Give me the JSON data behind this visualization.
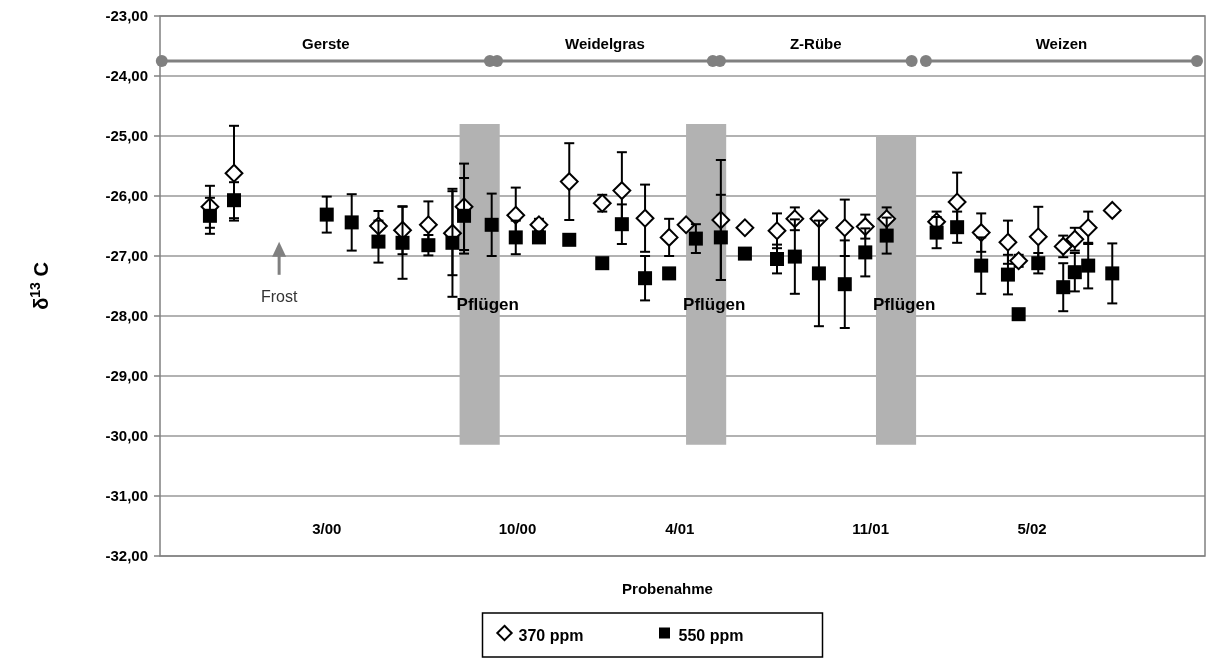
{
  "chart_data": {
    "type": "scatter",
    "xlabel": "Probenahme",
    "ylabel": "δ$^{13}$ C",
    "x": [
      "1999-10-22",
      "1999-11-18",
      "2000-03-01",
      "2000-03-29",
      "2000-04-28",
      "2000-05-25",
      "2000-06-23",
      "2000-07-20",
      "2000-08-02",
      "2000-09-02",
      "2000-09-29",
      "2000-10-25",
      "2000-11-28",
      "2001-01-04",
      "2001-01-26",
      "2001-02-21",
      "2001-03-20",
      "2001-04-08",
      "2001-04-19",
      "2001-05-17",
      "2001-06-13",
      "2001-07-19",
      "2001-08-08",
      "2001-09-04",
      "2001-10-03",
      "2001-10-26",
      "2001-11-19",
      "2002-01-14",
      "2002-02-06",
      "2002-03-05",
      "2002-04-04",
      "2002-04-16",
      "2002-05-08",
      "2002-06-05",
      "2002-06-18",
      "2002-07-03",
      "2002-07-30"
    ],
    "series": [
      {
        "name": "370 ppm",
        "color": "#000000",
        "marker": "diamond",
        "values": [
          -26.18,
          -25.62,
          null,
          null,
          -26.5,
          -26.57,
          -26.48,
          -26.62,
          -26.18,
          null,
          -26.32,
          -26.48,
          -25.76,
          -26.12,
          -25.91,
          -26.37,
          -26.69,
          -26.48,
          null,
          -26.4,
          -26.53,
          -26.58,
          -26.38,
          -26.38,
          -26.53,
          -26.51,
          -26.38,
          -26.43,
          -26.1,
          -26.61,
          -26.77,
          -27.08,
          -26.68,
          -26.84,
          -26.72,
          -26.53,
          -26.24
        ],
        "errors": [
          0.35,
          0.79,
          null,
          null,
          0.25,
          0.4,
          0.39,
          0.7,
          0.72,
          null,
          0.46,
          0.1,
          0.64,
          0.14,
          0.64,
          0.56,
          0.31,
          null,
          null,
          1.0,
          null,
          0.29,
          0.19,
          null,
          0.47,
          0.2,
          0.19,
          0.17,
          0.49,
          0.32,
          0.36,
          0.1,
          0.5,
          0.18,
          0.19,
          0.27,
          null
        ]
      },
      {
        "name": "550 ppm",
        "color": "#000000",
        "marker": "square",
        "values": [
          -26.33,
          -26.07,
          -26.31,
          -26.44,
          -26.76,
          -26.78,
          -26.82,
          -26.78,
          -26.33,
          -26.48,
          -26.69,
          -26.69,
          -26.73,
          -27.12,
          -26.47,
          -27.37,
          -27.29,
          null,
          -26.71,
          -26.69,
          -26.96,
          -27.05,
          -27.01,
          -27.29,
          -27.47,
          -26.94,
          -26.66,
          -26.61,
          -26.52,
          -27.16,
          -27.31,
          -27.97,
          -27.12,
          -27.52,
          -27.27,
          -27.16,
          -27.29
        ],
        "errors": [
          0.3,
          0.3,
          0.3,
          0.47,
          0.35,
          0.6,
          0.17,
          0.9,
          0.63,
          0.52,
          0.28,
          null,
          null,
          null,
          0.33,
          0.37,
          null,
          null,
          0.24,
          0.71,
          null,
          0.24,
          0.62,
          0.88,
          0.73,
          0.4,
          0.3,
          0.26,
          0.26,
          0.47,
          0.33,
          null,
          0.17,
          0.4,
          0.32,
          0.38,
          0.5
        ]
      },
      {
        "name": "Gerste",
        "type": "line",
        "color": "#808080",
        "marker": "circle",
        "x": [
          "1999-08-29",
          "2000-08-31"
        ],
        "values": [
          -23.75,
          -23.75
        ]
      },
      {
        "name": "Weidelgras",
        "type": "line",
        "color": "#808080",
        "marker": "circle",
        "x": [
          "2000-09-08",
          "2001-05-08"
        ],
        "values": [
          -23.75,
          -23.75
        ]
      },
      {
        "name": "Z-Rübe",
        "type": "line",
        "color": "#808080",
        "marker": "circle",
        "x": [
          "2001-05-16",
          "2001-12-17"
        ],
        "values": [
          -23.75,
          -23.75
        ]
      },
      {
        "name": "Weizen",
        "type": "line",
        "color": "#808080",
        "marker": "circle",
        "x": [
          "2002-01-02",
          "2002-11-02"
        ],
        "values": [
          -23.75,
          -23.75
        ]
      }
    ],
    "xlim": [
      "1999-08-27",
      "2002-11-11"
    ],
    "xticks": [
      {
        "value": "2000-03-01",
        "label": "3/00"
      },
      {
        "value": "2000-10-01",
        "label": "10/00"
      },
      {
        "value": "2001-04-01",
        "label": "4/01"
      },
      {
        "value": "2001-11-01",
        "label": "11/01"
      },
      {
        "value": "2002-05-01",
        "label": "5/02"
      }
    ],
    "ylim": [
      -32,
      -23
    ],
    "yticks": [
      {
        "value": -32,
        "label": "-32,00"
      },
      {
        "value": -31,
        "label": "-31,00"
      },
      {
        "value": -30,
        "label": "-30,00"
      },
      {
        "value": -29,
        "label": "-29,00"
      },
      {
        "value": -28,
        "label": "-28,00"
      },
      {
        "value": -27,
        "label": "-27,00"
      },
      {
        "value": -26,
        "label": "-26,00"
      },
      {
        "value": -25,
        "label": "-25,00"
      },
      {
        "value": -24,
        "label": "-24,00"
      },
      {
        "value": -23,
        "label": "-23,00"
      }
    ],
    "bands": [
      {
        "axis": "x",
        "from": "2000-07-28",
        "to": "2000-09-11",
        "label": "Pflügen",
        "color": "#b2b2b2"
      },
      {
        "axis": "x",
        "from": "2001-04-08",
        "to": "2001-05-23",
        "label": "Pflügen",
        "color": "#b2b2b2"
      },
      {
        "axis": "x",
        "from": "2001-11-07",
        "to": "2001-12-22",
        "label": "Pflügen",
        "color": "#b2b2b2"
      }
    ],
    "annotations": [
      "Frost"
    ],
    "grid": "y",
    "legend": "bottom"
  }
}
